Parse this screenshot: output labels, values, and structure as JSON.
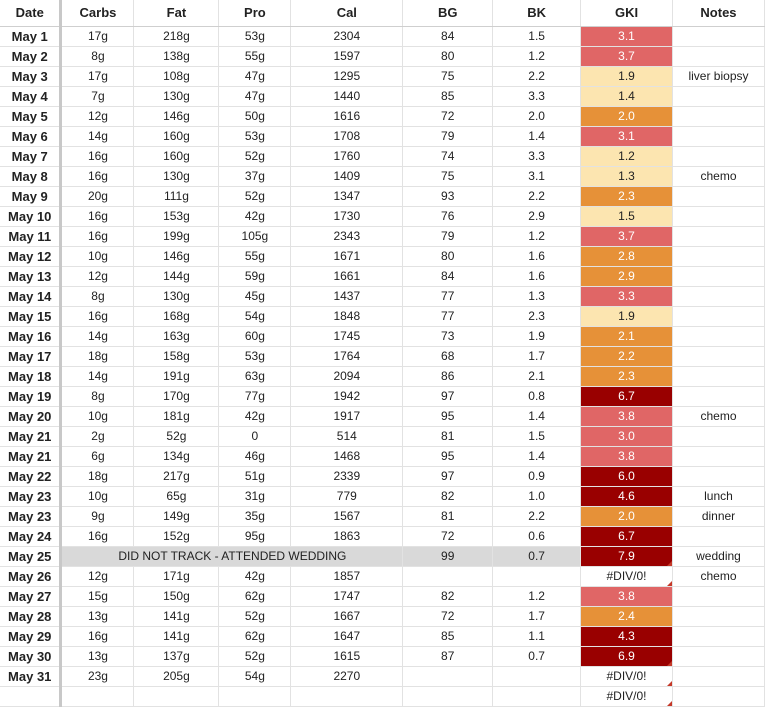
{
  "headers": {
    "date": "Date",
    "carbs": "Carbs",
    "fat": "Fat",
    "pro": "Pro",
    "cal": "Cal",
    "bg": "BG",
    "bk": "BK",
    "gki": "GKI",
    "notes": "Notes"
  },
  "colors": {
    "gki_red": "#e06666",
    "gki_orange": "#e69138",
    "gki_light": "#fce5b0",
    "gki_dark": "#990000",
    "merged_gray": "#d9d9d9"
  },
  "rows": [
    {
      "date": "May 1",
      "carbs": "17g",
      "fat": "218g",
      "pro": "53g",
      "cal": "2304",
      "bg": "84",
      "bk": "1.5",
      "gki": "3.1",
      "level": "red",
      "notes": ""
    },
    {
      "date": "May 2",
      "carbs": "8g",
      "fat": "138g",
      "pro": "55g",
      "cal": "1597",
      "bg": "80",
      "bk": "1.2",
      "gki": "3.7",
      "level": "red",
      "notes": ""
    },
    {
      "date": "May 3",
      "carbs": "17g",
      "fat": "108g",
      "pro": "47g",
      "cal": "1295",
      "bg": "75",
      "bk": "2.2",
      "gki": "1.9",
      "level": "light",
      "notes": "liver biopsy"
    },
    {
      "date": "May 4",
      "carbs": "7g",
      "fat": "130g",
      "pro": "47g",
      "cal": "1440",
      "bg": "85",
      "bk": "3.3",
      "gki": "1.4",
      "level": "light",
      "notes": ""
    },
    {
      "date": "May 5",
      "carbs": "12g",
      "fat": "146g",
      "pro": "50g",
      "cal": "1616",
      "bg": "72",
      "bk": "2.0",
      "gki": "2.0",
      "level": "orange",
      "notes": ""
    },
    {
      "date": "May 6",
      "carbs": "14g",
      "fat": "160g",
      "pro": "53g",
      "cal": "1708",
      "bg": "79",
      "bk": "1.4",
      "gki": "3.1",
      "level": "red",
      "notes": ""
    },
    {
      "date": "May 7",
      "carbs": "16g",
      "fat": "160g",
      "pro": "52g",
      "cal": "1760",
      "bg": "74",
      "bk": "3.3",
      "gki": "1.2",
      "level": "light",
      "notes": ""
    },
    {
      "date": "May 8",
      "carbs": "16g",
      "fat": "130g",
      "pro": "37g",
      "cal": "1409",
      "bg": "75",
      "bk": "3.1",
      "gki": "1.3",
      "level": "light",
      "notes": "chemo"
    },
    {
      "date": "May 9",
      "carbs": "20g",
      "fat": "111g",
      "pro": "52g",
      "cal": "1347",
      "bg": "93",
      "bk": "2.2",
      "gki": "2.3",
      "level": "orange",
      "notes": ""
    },
    {
      "date": "May 10",
      "carbs": "16g",
      "fat": "153g",
      "pro": "42g",
      "cal": "1730",
      "bg": "76",
      "bk": "2.9",
      "gki": "1.5",
      "level": "light",
      "notes": ""
    },
    {
      "date": "May 11",
      "carbs": "16g",
      "fat": "199g",
      "pro": "105g",
      "cal": "2343",
      "bg": "79",
      "bk": "1.2",
      "gki": "3.7",
      "level": "red",
      "notes": ""
    },
    {
      "date": "May 12",
      "carbs": "10g",
      "fat": "146g",
      "pro": "55g",
      "cal": "1671",
      "bg": "80",
      "bk": "1.6",
      "gki": "2.8",
      "level": "orange",
      "notes": ""
    },
    {
      "date": "May 13",
      "carbs": "12g",
      "fat": "144g",
      "pro": "59g",
      "cal": "1661",
      "bg": "84",
      "bk": "1.6",
      "gki": "2.9",
      "level": "orange",
      "notes": ""
    },
    {
      "date": "May 14",
      "carbs": "8g",
      "fat": "130g",
      "pro": "45g",
      "cal": "1437",
      "bg": "77",
      "bk": "1.3",
      "gki": "3.3",
      "level": "red",
      "notes": ""
    },
    {
      "date": "May 15",
      "carbs": "16g",
      "fat": "168g",
      "pro": "54g",
      "cal": "1848",
      "bg": "77",
      "bk": "2.3",
      "gki": "1.9",
      "level": "light",
      "notes": ""
    },
    {
      "date": "May 16",
      "carbs": "14g",
      "fat": "163g",
      "pro": "60g",
      "cal": "1745",
      "bg": "73",
      "bk": "1.9",
      "gki": "2.1",
      "level": "orange",
      "notes": ""
    },
    {
      "date": "May 17",
      "carbs": "18g",
      "fat": "158g",
      "pro": "53g",
      "cal": "1764",
      "bg": "68",
      "bk": "1.7",
      "gki": "2.2",
      "level": "orange",
      "notes": ""
    },
    {
      "date": "May 18",
      "carbs": "14g",
      "fat": "191g",
      "pro": "63g",
      "cal": "2094",
      "bg": "86",
      "bk": "2.1",
      "gki": "2.3",
      "level": "orange",
      "notes": ""
    },
    {
      "date": "May 19",
      "carbs": "8g",
      "fat": "170g",
      "pro": "77g",
      "cal": "1942",
      "bg": "97",
      "bk": "0.8",
      "gki": "6.7",
      "level": "dark",
      "notes": ""
    },
    {
      "date": "May 20",
      "carbs": "10g",
      "fat": "181g",
      "pro": "42g",
      "cal": "1917",
      "bg": "95",
      "bk": "1.4",
      "gki": "3.8",
      "level": "red",
      "notes": "chemo"
    },
    {
      "date": "May 21",
      "carbs": "2g",
      "fat": "52g",
      "pro": "0",
      "cal": "514",
      "bg": "81",
      "bk": "1.5",
      "gki": "3.0",
      "level": "red",
      "notes": ""
    },
    {
      "date": "May 21",
      "carbs": "6g",
      "fat": "134g",
      "pro": "46g",
      "cal": "1468",
      "bg": "95",
      "bk": "1.4",
      "gki": "3.8",
      "level": "red",
      "notes": ""
    },
    {
      "date": "May 22",
      "carbs": "18g",
      "fat": "217g",
      "pro": "51g",
      "cal": "2339",
      "bg": "97",
      "bk": "0.9",
      "gki": "6.0",
      "level": "dark",
      "notes": ""
    },
    {
      "date": "May 23",
      "carbs": "10g",
      "fat": "65g",
      "pro": "31g",
      "cal": "779",
      "bg": "82",
      "bk": "1.0",
      "gki": "4.6",
      "level": "dark",
      "notes": "lunch"
    },
    {
      "date": "May 23",
      "carbs": "9g",
      "fat": "149g",
      "pro": "35g",
      "cal": "1567",
      "bg": "81",
      "bk": "2.2",
      "gki": "2.0",
      "level": "orange",
      "notes": "dinner"
    },
    {
      "date": "May 24",
      "carbs": "16g",
      "fat": "152g",
      "pro": "95g",
      "cal": "1863",
      "bg": "72",
      "bk": "0.6",
      "gki": "6.7",
      "level": "dark",
      "notes": ""
    },
    {
      "date": "May 25",
      "merged": "DID NOT TRACK - ATTENDED WEDDING",
      "bg": "99",
      "bk": "0.7",
      "gki": "7.9",
      "level": "dark",
      "flag": true,
      "notes": "wedding"
    },
    {
      "date": "May 26",
      "carbs": "12g",
      "fat": "171g",
      "pro": "42g",
      "cal": "1857",
      "bg": "",
      "bk": "",
      "gki": "#DIV/0!",
      "level": "err",
      "notes": "chemo"
    },
    {
      "date": "May 27",
      "carbs": "15g",
      "fat": "150g",
      "pro": "62g",
      "cal": "1747",
      "bg": "82",
      "bk": "1.2",
      "gki": "3.8",
      "level": "red",
      "notes": ""
    },
    {
      "date": "May 28",
      "carbs": "13g",
      "fat": "141g",
      "pro": "52g",
      "cal": "1667",
      "bg": "72",
      "bk": "1.7",
      "gki": "2.4",
      "level": "orange",
      "notes": ""
    },
    {
      "date": "May 29",
      "carbs": "16g",
      "fat": "141g",
      "pro": "62g",
      "cal": "1647",
      "bg": "85",
      "bk": "1.1",
      "gki": "4.3",
      "level": "dark",
      "notes": ""
    },
    {
      "date": "May 30",
      "carbs": "13g",
      "fat": "137g",
      "pro": "52g",
      "cal": "1615",
      "bg": "87",
      "bk": "0.7",
      "gki": "6.9",
      "level": "dark",
      "flag": true,
      "notes": ""
    },
    {
      "date": "May 31",
      "carbs": "23g",
      "fat": "205g",
      "pro": "54g",
      "cal": "2270",
      "bg": "",
      "bk": "",
      "gki": "#DIV/0!",
      "level": "err",
      "notes": ""
    },
    {
      "date": "",
      "carbs": "",
      "fat": "",
      "pro": "",
      "cal": "",
      "bg": "",
      "bk": "",
      "gki": "#DIV/0!",
      "level": "err",
      "notes": ""
    }
  ]
}
